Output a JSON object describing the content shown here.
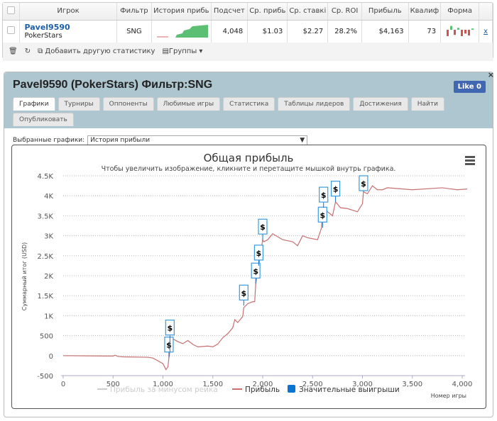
{
  "table": {
    "headers": [
      "Игрок",
      "Фильтр",
      "История прибь",
      "Подсчет",
      "Ср. прибь",
      "Ср. ставкі",
      "Ср. ROI",
      "Прибыль",
      "Квалиф",
      "Форма"
    ],
    "row": {
      "player": "Pavel9590",
      "site": "PokerStars",
      "filter": "SNG",
      "count": "4,048",
      "avg_profit": "$1.03",
      "avg_stake": "$2.27",
      "avg_roi": "28.2%",
      "profit": "$4,163",
      "qual": "73",
      "remove": "x"
    },
    "form_bars": [
      -1,
      0.6,
      -0.8,
      0.3,
      -1,
      -0.6,
      -0.9,
      0.2
    ]
  },
  "toolbar": {
    "add_stat": "Добавить другую статистику",
    "groups": "Группы"
  },
  "panel": {
    "title": "Pavel9590 (PokerStars) Фильтр:SNG",
    "like": "Like 0",
    "close": "×",
    "tabs": [
      "Графики",
      "Турниры",
      "Оппоненты",
      "Любимые игры",
      "Статистика",
      "Таблицы лидеров",
      "Достижения",
      "Найти",
      "Опубликовать"
    ],
    "selected_label": "Выбранные графики:",
    "selected_value": "История прибыли"
  },
  "chart_data": {
    "type": "line",
    "title": "Общая прибыль",
    "subtitle": "Чтобы увеличить изображение, кликните и перетащите мышкой внутрь графика.",
    "xlabel": "Номер игры",
    "ylabel": "Суммарный итог (USD)",
    "xlim": [
      0,
      4050
    ],
    "ylim": [
      -500,
      4500
    ],
    "xticks": [
      "0",
      "500",
      "1,000",
      "1,500",
      "2,000",
      "2,500",
      "3,000",
      "3,500",
      "4,000"
    ],
    "yticks": [
      "-500",
      "0",
      "500",
      "1K",
      "1.5K",
      "2K",
      "2.5K",
      "3K",
      "3.5K",
      "4K",
      "4.5K"
    ],
    "grid": true,
    "legend": "bottom",
    "series": [
      {
        "name": "Прибыль за минусом рейка",
        "color": "#cccccc",
        "values": []
      },
      {
        "name": "Прибыль",
        "color": "#c87070",
        "points": [
          [
            0,
            0
          ],
          [
            500,
            -10
          ],
          [
            520,
            10
          ],
          [
            550,
            -20
          ],
          [
            600,
            -30
          ],
          [
            850,
            -40
          ],
          [
            900,
            -60
          ],
          [
            1000,
            -200
          ],
          [
            1030,
            -350
          ],
          [
            1050,
            -280
          ],
          [
            1060,
            -50
          ],
          [
            1070,
            100
          ],
          [
            1080,
            380
          ],
          [
            1100,
            420
          ],
          [
            1150,
            350
          ],
          [
            1200,
            300
          ],
          [
            1250,
            380
          ],
          [
            1300,
            280
          ],
          [
            1350,
            220
          ],
          [
            1450,
            240
          ],
          [
            1500,
            220
          ],
          [
            1550,
            290
          ],
          [
            1600,
            450
          ],
          [
            1650,
            550
          ],
          [
            1700,
            700
          ],
          [
            1720,
            900
          ],
          [
            1750,
            830
          ],
          [
            1800,
            980
          ],
          [
            1810,
            1200
          ],
          [
            1850,
            1300
          ],
          [
            1900,
            1350
          ],
          [
            1920,
            1350
          ],
          [
            1930,
            1800
          ],
          [
            1960,
            2250
          ],
          [
            2000,
            2900
          ],
          [
            2010,
            2850
          ],
          [
            2050,
            2900
          ],
          [
            2100,
            3050
          ],
          [
            2200,
            2900
          ],
          [
            2300,
            2850
          ],
          [
            2350,
            2750
          ],
          [
            2400,
            3000
          ],
          [
            2450,
            2950
          ],
          [
            2550,
            2900
          ],
          [
            2590,
            3200
          ],
          [
            2600,
            3700
          ],
          [
            2650,
            3600
          ],
          [
            2700,
            3500
          ],
          [
            2730,
            3850
          ],
          [
            2780,
            3700
          ],
          [
            2850,
            3680
          ],
          [
            2950,
            3600
          ],
          [
            3000,
            3800
          ],
          [
            3010,
            4100
          ],
          [
            3050,
            4050
          ],
          [
            3100,
            4250
          ],
          [
            3150,
            4150
          ],
          [
            3200,
            4150
          ],
          [
            3250,
            4200
          ],
          [
            3500,
            4150
          ],
          [
            3800,
            4200
          ],
          [
            3950,
            4150
          ],
          [
            4050,
            4170
          ]
        ]
      },
      {
        "name": "Значительные выигрыши",
        "color": "#0a74d0",
        "flag": "$",
        "points": [
          [
            1060,
            -50
          ],
          [
            1070,
            100
          ],
          [
            1810,
            1250
          ],
          [
            1930,
            1800
          ],
          [
            1960,
            2250
          ],
          [
            2000,
            2900
          ],
          [
            2600,
            3200
          ],
          [
            2610,
            3700
          ],
          [
            2730,
            3850
          ],
          [
            3010,
            4100
          ]
        ]
      }
    ]
  }
}
